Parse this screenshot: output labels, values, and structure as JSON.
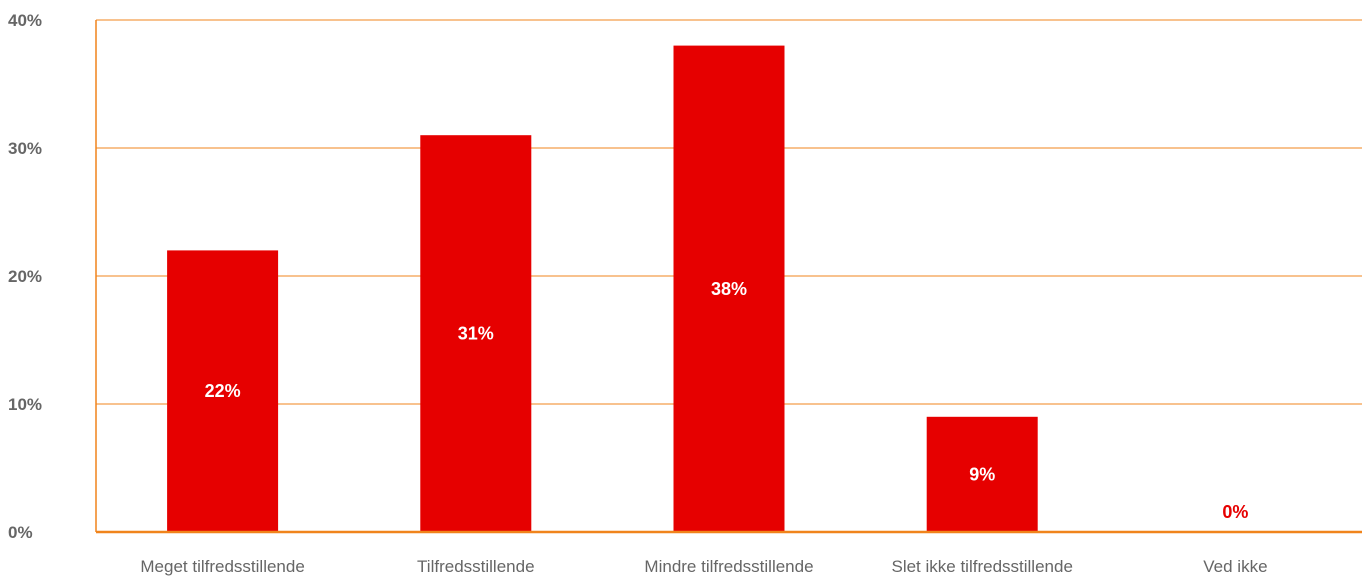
{
  "chart_data": {
    "type": "bar",
    "categories": [
      "Meget tilfredsstillende",
      "Tilfredsstillende",
      "Mindre tilfredsstillende",
      "Slet ikke tilfredsstillende",
      "Ved ikke"
    ],
    "values": [
      22,
      31,
      38,
      9,
      0
    ],
    "data_labels": [
      "22%",
      "31%",
      "38%",
      "9%",
      "0%"
    ],
    "yticks": [
      0,
      10,
      20,
      30,
      40
    ],
    "ytick_labels": [
      "0%",
      "10%",
      "20%",
      "30%",
      "40%"
    ],
    "ylim": [
      0,
      40
    ],
    "title": "",
    "xlabel": "",
    "ylabel": "",
    "grid": true,
    "legend": "none",
    "colors": {
      "bar": "#e60000",
      "grid": "#f0841c",
      "axis": "#f0841c",
      "tick_text": "#666666",
      "label_inside": "#ffffff",
      "label_outside": "#e60000"
    }
  }
}
